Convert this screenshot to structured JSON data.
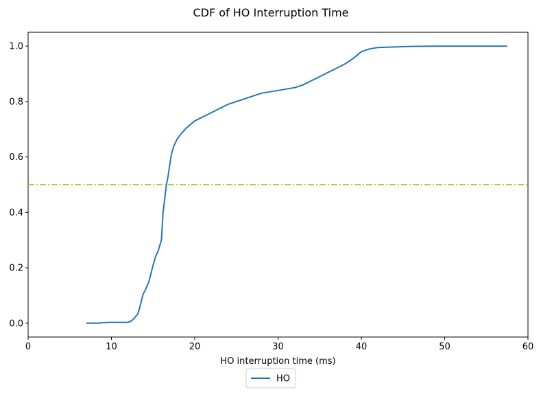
{
  "chart_data": {
    "type": "line",
    "title": "CDF of HO Interruption Time",
    "xlabel": "HO interruption time (ms)",
    "ylabel": "",
    "xlim": [
      0,
      60
    ],
    "ylim": [
      -0.05,
      1.05
    ],
    "xticks": [
      0,
      10,
      20,
      30,
      40,
      50,
      60
    ],
    "yticks": [
      0.0,
      0.2,
      0.4,
      0.6,
      0.8,
      1.0
    ],
    "xtick_labels": [
      "0",
      "10",
      "20",
      "30",
      "40",
      "50",
      "60"
    ],
    "ytick_labels": [
      "0.0",
      "0.2",
      "0.4",
      "0.6",
      "0.8",
      "1.0"
    ],
    "grid": false,
    "legend_position": "below",
    "series": [
      {
        "name": "HO",
        "color": "#1f77b4",
        "x": [
          7.0,
          8.5,
          9.0,
          10.0,
          11.0,
          12.0,
          12.4,
          12.8,
          13.2,
          13.6,
          13.8,
          14.0,
          14.5,
          15.0,
          15.3,
          15.6,
          16.0,
          16.2,
          16.4,
          16.6,
          16.8,
          17.0,
          17.2,
          17.5,
          17.9,
          18.4,
          19.0,
          20.0,
          21.0,
          22.0,
          23.0,
          24.0,
          25.0,
          26.0,
          27.0,
          28.0,
          29.0,
          30.0,
          31.0,
          32.0,
          33.0,
          34.0,
          35.0,
          36.0,
          37.0,
          38.0,
          39.0,
          40.0,
          41.0,
          42.0,
          44.0,
          46.0,
          50.0,
          55.0,
          57.5
        ],
        "y": [
          0.0,
          0.0,
          0.002,
          0.003,
          0.003,
          0.003,
          0.008,
          0.02,
          0.035,
          0.08,
          0.105,
          0.115,
          0.15,
          0.21,
          0.24,
          0.26,
          0.3,
          0.4,
          0.45,
          0.5,
          0.53,
          0.57,
          0.61,
          0.64,
          0.665,
          0.685,
          0.705,
          0.73,
          0.745,
          0.76,
          0.775,
          0.79,
          0.8,
          0.81,
          0.82,
          0.83,
          0.835,
          0.84,
          0.845,
          0.85,
          0.86,
          0.875,
          0.89,
          0.905,
          0.92,
          0.935,
          0.955,
          0.98,
          0.99,
          0.995,
          0.997,
          0.999,
          1.0,
          1.0,
          1.0
        ]
      }
    ],
    "reference_lines": [
      {
        "orientation": "horizontal",
        "y": 0.5,
        "color": "#bcbd22",
        "style": "dash-dot"
      }
    ]
  }
}
